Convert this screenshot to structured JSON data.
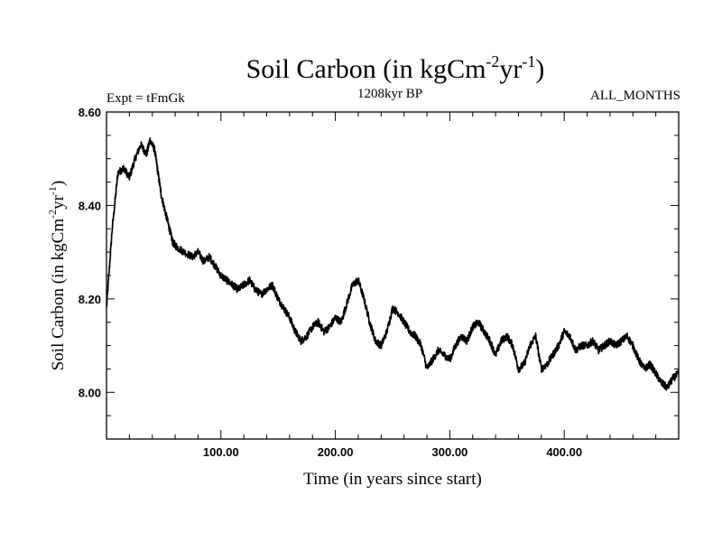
{
  "chart_data": {
    "type": "line",
    "title_main": "Soil Carbon (in kgCm",
    "title_exp1": "-2",
    "title_mid": "yr",
    "title_exp2": "-1",
    "title_close": ")",
    "subtitle_left": "Expt = tFmGk",
    "subtitle_center": "1208kyr BP",
    "subtitle_right": "ALL_MONTHS",
    "xlabel": "Time (in years since start)",
    "ylabel_main": "Soil Carbon (in kgCm",
    "ylabel_exp1": "-2",
    "ylabel_mid": "yr",
    "ylabel_exp2": "-1",
    "ylabel_close": ")",
    "xlim": [
      0,
      500
    ],
    "ylim": [
      7.9,
      8.6
    ],
    "x_ticks": [
      100,
      200,
      300,
      400
    ],
    "x_tick_labels": [
      "100.00",
      "200.00",
      "300.00",
      "400.00"
    ],
    "y_ticks": [
      8.0,
      8.2,
      8.4,
      8.6
    ],
    "y_tick_labels": [
      "8.00",
      "8.20",
      "8.40",
      "8.60"
    ],
    "series": [
      {
        "name": "Soil Carbon",
        "color": "#000000",
        "noise": 0.008,
        "x": [
          0,
          5,
          10,
          15,
          20,
          25,
          30,
          35,
          38,
          42,
          45,
          48,
          52,
          55,
          58,
          62,
          68,
          75,
          80,
          85,
          90,
          95,
          100,
          105,
          110,
          115,
          120,
          125,
          130,
          135,
          140,
          145,
          150,
          155,
          160,
          165,
          170,
          175,
          180,
          185,
          190,
          195,
          200,
          205,
          210,
          215,
          220,
          225,
          230,
          235,
          240,
          245,
          250,
          255,
          260,
          265,
          270,
          275,
          280,
          285,
          290,
          295,
          300,
          305,
          310,
          315,
          320,
          325,
          330,
          335,
          340,
          345,
          350,
          355,
          360,
          365,
          370,
          375,
          380,
          385,
          390,
          395,
          400,
          405,
          410,
          415,
          420,
          425,
          430,
          435,
          440,
          445,
          450,
          455,
          460,
          465,
          470,
          475,
          480,
          485,
          490,
          495,
          500
        ],
        "y": [
          8.18,
          8.35,
          8.47,
          8.48,
          8.46,
          8.5,
          8.53,
          8.51,
          8.54,
          8.52,
          8.47,
          8.42,
          8.38,
          8.35,
          8.32,
          8.31,
          8.3,
          8.29,
          8.3,
          8.28,
          8.29,
          8.27,
          8.25,
          8.24,
          8.23,
          8.22,
          8.23,
          8.24,
          8.22,
          8.21,
          8.22,
          8.23,
          8.2,
          8.18,
          8.16,
          8.13,
          8.11,
          8.12,
          8.14,
          8.15,
          8.13,
          8.14,
          8.16,
          8.15,
          8.19,
          8.23,
          8.24,
          8.2,
          8.15,
          8.11,
          8.1,
          8.13,
          8.18,
          8.17,
          8.15,
          8.13,
          8.12,
          8.1,
          8.05,
          8.07,
          8.09,
          8.08,
          8.07,
          8.1,
          8.12,
          8.11,
          8.14,
          8.15,
          8.13,
          8.11,
          8.08,
          8.11,
          8.12,
          8.1,
          8.05,
          8.06,
          8.1,
          8.12,
          8.05,
          8.06,
          8.08,
          8.1,
          8.13,
          8.12,
          8.09,
          8.1,
          8.1,
          8.11,
          8.09,
          8.1,
          8.11,
          8.1,
          8.11,
          8.12,
          8.1,
          8.07,
          8.05,
          8.06,
          8.04,
          8.02,
          8.01,
          8.03,
          8.04
        ]
      }
    ]
  }
}
